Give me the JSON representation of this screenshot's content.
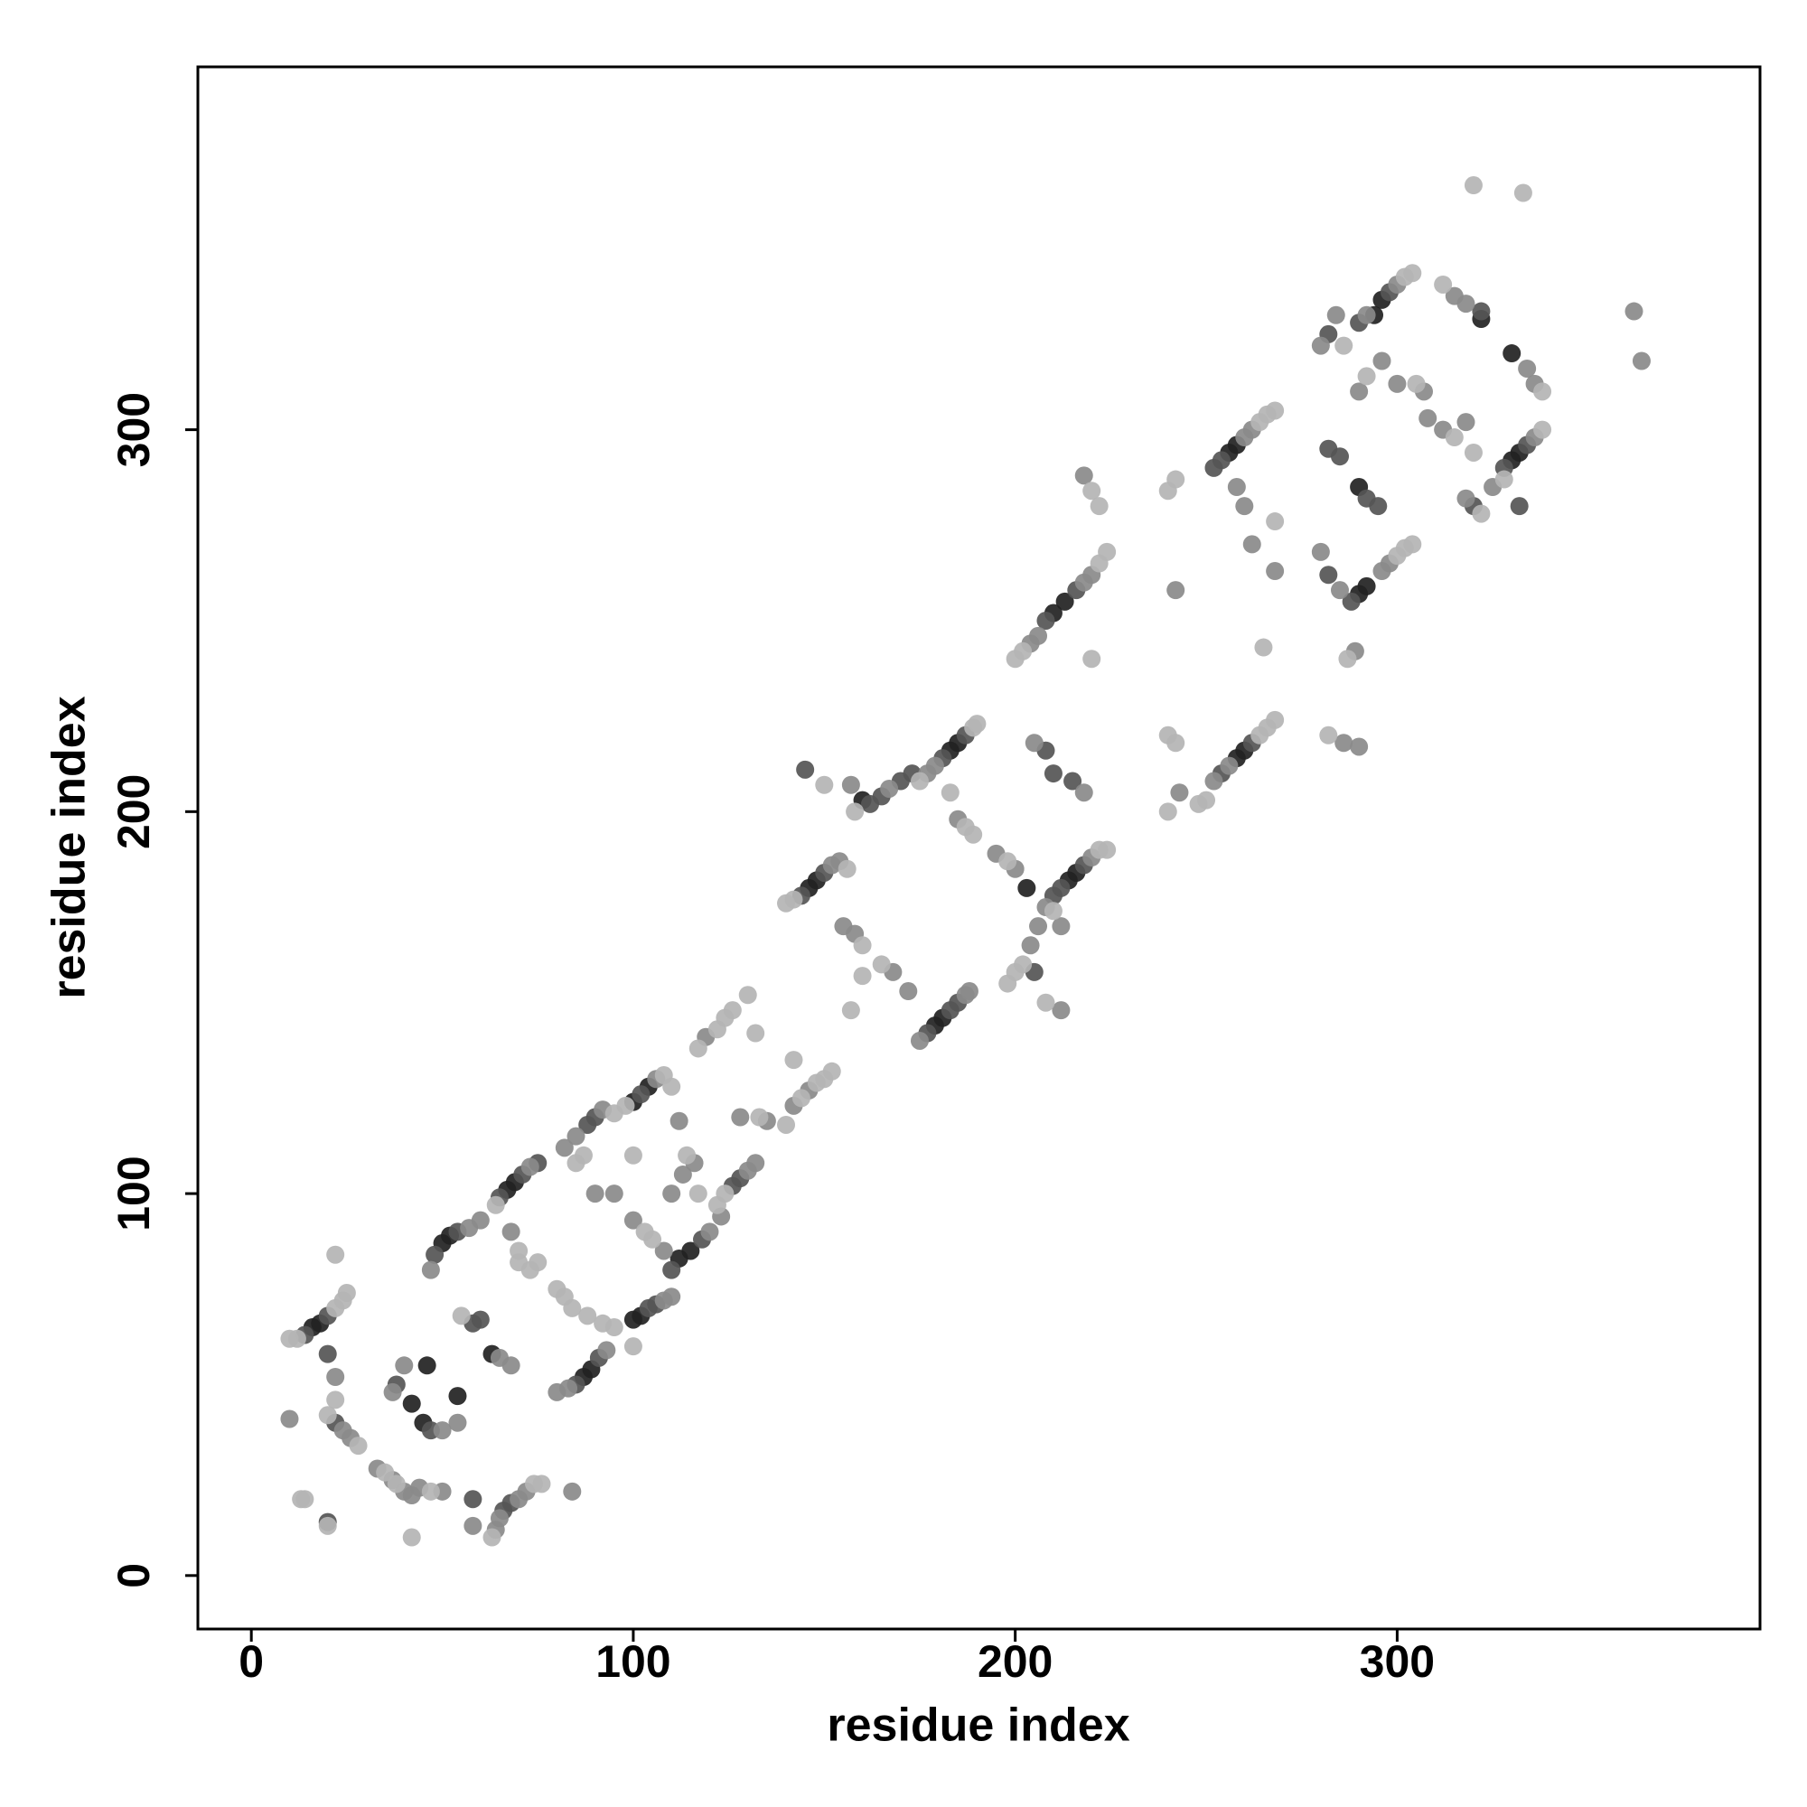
{
  "chart_data": {
    "type": "scatter",
    "x_label": "residue index",
    "y_label": "residue index",
    "xlim": [
      -14,
      395
    ],
    "ylim": [
      -14,
      395
    ],
    "xticks": [
      0,
      100,
      200,
      300
    ],
    "yticks": [
      0,
      100,
      200,
      300
    ],
    "series": [
      {
        "color": "#222222",
        "x": [
          16,
          18,
          42,
          45,
          54,
          50,
          52,
          67,
          69,
          87,
          89,
          100,
          102,
          104,
          100,
          112,
          115,
          146,
          148,
          160,
          179,
          181,
          183,
          185,
          203,
          214,
          216,
          210,
          213,
          256,
          258,
          258,
          260,
          290,
          292,
          294,
          296,
          290,
          330,
          332,
          322,
          330,
          63,
          46
        ],
        "values": [
          65,
          66,
          45,
          40,
          47,
          87,
          89,
          101,
          103,
          52,
          54,
          67,
          68,
          128,
          124,
          83,
          85,
          180,
          182,
          203,
          144,
          146,
          216,
          218,
          180,
          182,
          184,
          252,
          255,
          294,
          296,
          214,
          216,
          257,
          259,
          330,
          334,
          285,
          292,
          294,
          329,
          320,
          58,
          55
        ]
      },
      {
        "color": "#555555",
        "x": [
          20,
          14,
          20,
          22,
          38,
          47,
          60,
          58,
          48,
          54,
          65,
          71,
          85,
          91,
          104,
          106,
          88,
          90,
          102,
          110,
          118,
          126,
          128,
          144,
          150,
          162,
          165,
          170,
          177,
          183,
          181,
          187,
          205,
          210,
          212,
          218,
          208,
          216,
          252,
          254,
          254,
          262,
          288,
          292,
          295,
          290,
          298,
          282,
          285,
          322,
          320,
          328,
          334,
          332,
          210,
          215,
          208,
          282,
          282,
          145,
          173,
          58,
          66,
          68,
          20,
          185,
          75
        ],
        "values": [
          68,
          63,
          58,
          40,
          50,
          38,
          67,
          66,
          84,
          90,
          99,
          105,
          50,
          57,
          70,
          71,
          118,
          120,
          126,
          80,
          88,
          102,
          104,
          178,
          184,
          202,
          204,
          208,
          142,
          148,
          214,
          220,
          158,
          178,
          180,
          186,
          250,
          258,
          290,
          292,
          210,
          218,
          255,
          282,
          280,
          328,
          336,
          295,
          293,
          331,
          280,
          290,
          296,
          280,
          210,
          208,
          216,
          325,
          262,
          211,
          210,
          20,
          17,
          19,
          14,
          150,
          108
        ]
      },
      {
        "color": "#8a8a8a",
        "x": [
          10,
          22,
          24,
          26,
          33,
          37,
          40,
          44,
          50,
          64,
          65,
          70,
          84,
          58,
          37,
          40,
          50,
          54,
          65,
          68,
          47,
          57,
          60,
          73,
          68,
          80,
          83,
          93,
          108,
          110,
          82,
          85,
          92,
          90,
          95,
          100,
          108,
          110,
          106,
          112,
          113,
          116,
          120,
          123,
          130,
          132,
          119,
          128,
          135,
          142,
          146,
          152,
          154,
          157,
          167,
          155,
          158,
          168,
          172,
          175,
          187,
          188,
          177,
          179,
          185,
          195,
          200,
          204,
          206,
          208,
          220,
          212,
          212,
          204,
          206,
          218,
          220,
          205,
          218,
          218,
          242,
          243,
          252,
          256,
          260,
          262,
          258,
          260,
          262,
          268,
          286,
          290,
          280,
          285,
          289,
          296,
          298,
          290,
          296,
          280,
          284,
          292,
          300,
          300,
          307,
          308,
          312,
          318,
          315,
          318,
          318,
          325,
          336,
          334,
          336,
          362,
          364,
          42,
          72
        ],
        "values": [
          41,
          52,
          38,
          36,
          28,
          25,
          22,
          23,
          22,
          12,
          15,
          20,
          22,
          13,
          48,
          55,
          38,
          40,
          57,
          55,
          80,
          91,
          93,
          107,
          90,
          48,
          49,
          59,
          72,
          73,
          112,
          115,
          122,
          100,
          100,
          93,
          85,
          100,
          130,
          119,
          105,
          108,
          90,
          94,
          106,
          108,
          141,
          120,
          119,
          123,
          127,
          186,
          187,
          207,
          206,
          170,
          168,
          158,
          153,
          140,
          152,
          153,
          210,
          212,
          198,
          189,
          185,
          165,
          170,
          175,
          188,
          148,
          170,
          244,
          246,
          260,
          262,
          218,
          205,
          288,
          258,
          205,
          208,
          212,
          298,
          300,
          285,
          280,
          270,
          263,
          218,
          217,
          268,
          258,
          242,
          263,
          265,
          310,
          318,
          322,
          330,
          330,
          338,
          312,
          310,
          303,
          300,
          302,
          335,
          333,
          282,
          285,
          298,
          316,
          312,
          331,
          318,
          21,
          22
        ]
      },
      {
        "color": "#b4b4b4",
        "x": [
          10,
          12,
          22,
          24,
          25,
          22,
          13,
          14,
          20,
          20,
          22,
          28,
          35,
          38,
          47,
          42,
          63,
          74,
          76,
          55,
          64,
          70,
          75,
          70,
          73,
          80,
          82,
          84,
          88,
          92,
          95,
          100,
          85,
          87,
          103,
          105,
          100,
          95,
          98,
          108,
          110,
          114,
          117,
          122,
          124,
          117,
          122,
          124,
          126,
          130,
          132,
          133,
          140,
          144,
          148,
          150,
          152,
          142,
          140,
          142,
          156,
          150,
          158,
          160,
          157,
          160,
          165,
          189,
          190,
          175,
          183,
          187,
          189,
          198,
          198,
          200,
          202,
          222,
          224,
          208,
          210,
          200,
          202,
          222,
          224,
          220,
          220,
          222,
          240,
          242,
          240,
          242,
          240,
          248,
          250,
          264,
          266,
          268,
          264,
          266,
          268,
          265,
          268,
          282,
          287,
          300,
          302,
          304,
          292,
          286,
          302,
          304,
          305,
          315,
          320,
          312,
          322,
          328,
          338,
          338,
          320,
          333
        ],
        "values": [
          62,
          62,
          70,
          72,
          74,
          84,
          20,
          20,
          13,
          42,
          46,
          34,
          27,
          24,
          22,
          10,
          10,
          24,
          24,
          68,
          97,
          85,
          82,
          82,
          80,
          75,
          73,
          70,
          68,
          66,
          65,
          60,
          108,
          110,
          90,
          88,
          110,
          121,
          123,
          131,
          128,
          110,
          100,
          97,
          100,
          138,
          143,
          146,
          148,
          152,
          142,
          120,
          118,
          125,
          129,
          130,
          132,
          135,
          176,
          177,
          185,
          207,
          200,
          165,
          148,
          157,
          160,
          222,
          223,
          208,
          205,
          196,
          194,
          187,
          155,
          158,
          160,
          190,
          190,
          150,
          174,
          240,
          242,
          265,
          268,
          240,
          284,
          280,
          220,
          218,
          284,
          287,
          200,
          202,
          203,
          220,
          222,
          224,
          302,
          304,
          305,
          243,
          276,
          220,
          240,
          267,
          269,
          270,
          314,
          322,
          340,
          341,
          312,
          298,
          294,
          338,
          278,
          287,
          300,
          310,
          364,
          362
        ]
      }
    ]
  }
}
